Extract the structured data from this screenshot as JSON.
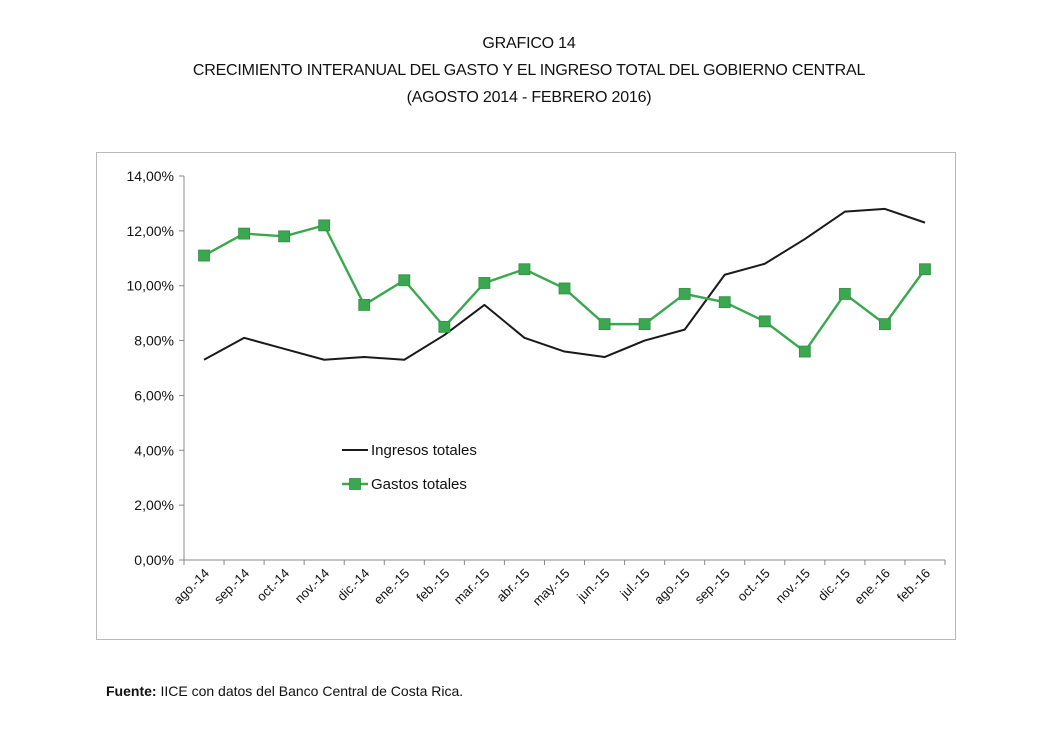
{
  "header": {
    "line1": "GRAFICO 14",
    "line2": "CRECIMIENTO INTERANUAL DEL GASTO Y EL INGRESO TOTAL DEL GOBIERNO CENTRAL",
    "line3": "(AGOSTO 2014 - FEBRERO 2016)"
  },
  "source": {
    "label": "Fuente:",
    "text": " IICE con datos del Banco Central de Costa Rica."
  },
  "chart_data": {
    "type": "line",
    "categories": [
      "ago.-14",
      "sep.-14",
      "oct.-14",
      "nov.-14",
      "dic.-14",
      "ene.-15",
      "feb.-15",
      "mar.-15",
      "abr.-15",
      "may.-15",
      "jun.-15",
      "jul.-15",
      "ago.-15",
      "sep.-15",
      "oct.-15",
      "nov.-15",
      "dic.-15",
      "ene.-16",
      "feb.-16"
    ],
    "series": [
      {
        "name": "Ingresos totales",
        "color": "#1a1a1a",
        "marker": "none",
        "values": [
          7.3,
          8.1,
          7.7,
          7.3,
          7.4,
          7.3,
          8.2,
          9.3,
          8.1,
          7.6,
          7.4,
          8.0,
          8.4,
          10.4,
          10.8,
          11.7,
          12.7,
          12.8,
          12.3
        ]
      },
      {
        "name": "Gastos totales",
        "color": "#3aa84f",
        "marker": "square",
        "values": [
          11.1,
          11.9,
          11.8,
          12.2,
          9.3,
          10.2,
          8.5,
          10.1,
          10.6,
          9.9,
          8.6,
          8.6,
          9.7,
          9.4,
          8.7,
          7.6,
          9.7,
          8.6,
          10.6
        ]
      }
    ],
    "ylim": [
      0,
      14
    ],
    "yticks": [
      "0,00%",
      "2,00%",
      "4,00%",
      "6,00%",
      "8,00%",
      "10,00%",
      "12,00%",
      "14,00%"
    ],
    "grid": false,
    "legend": "inside-left",
    "title": "",
    "xlabel": "",
    "ylabel": ""
  }
}
